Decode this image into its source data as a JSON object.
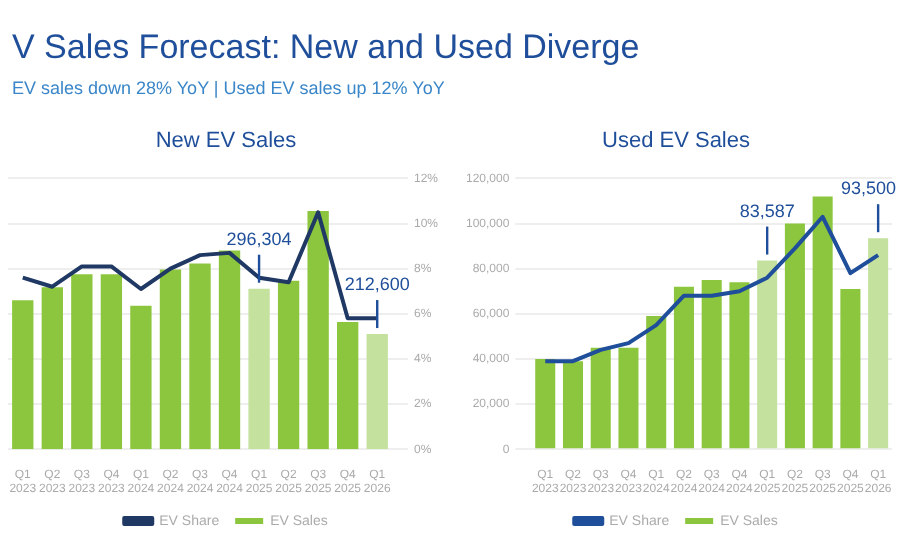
{
  "chart_data": [
    {
      "type": "other",
      "title": "V Sales Forecast: New and Used Diverge",
      "subtitle": "EV sales down 28% YoY | Used EV sales up 12% YoY"
    },
    {
      "type": "bar",
      "title": "New EV Sales",
      "categories": [
        "Q1 2023",
        "Q2 2023",
        "Q3 2023",
        "Q4 2023",
        "Q1 2024",
        "Q2 2024",
        "Q3 2024",
        "Q4 2024",
        "Q1 2025",
        "Q2 2025",
        "Q3 2025",
        "Q4 2025",
        "Q1 2026"
      ],
      "series": [
        {
          "name": "EV Sales",
          "type": "bar",
          "colors": [
            "#8cc63e",
            "#8cc63e",
            "#8cc63e",
            "#8cc63e",
            "#8cc63e",
            "#8cc63e",
            "#8cc63e",
            "#8cc63e",
            "#c4e29e",
            "#8cc63e",
            "#8cc63e",
            "#8cc63e",
            "#c4e29e"
          ],
          "values": [
            275000,
            299000,
            323000,
            323000,
            265000,
            332000,
            343000,
            367000,
            296304,
            311000,
            440000,
            235000,
            212600
          ],
          "value_labels": [
            null,
            null,
            null,
            null,
            null,
            null,
            null,
            null,
            "296,304",
            null,
            null,
            null,
            "212,600"
          ]
        },
        {
          "name": "EV Share",
          "type": "line",
          "axis": "y2",
          "color": "#1f3864",
          "values": [
            7.6,
            7.2,
            8.1,
            8.1,
            7.1,
            8.0,
            8.6,
            8.7,
            7.6,
            7.4,
            10.5,
            5.8,
            5.8
          ]
        }
      ],
      "y2lim": [
        0,
        12
      ],
      "y2ticks": [
        {
          "value": 0,
          "label": "0%"
        },
        {
          "value": 2,
          "label": "2%"
        },
        {
          "value": 4,
          "label": "4%"
        },
        {
          "value": 6,
          "label": "6%"
        },
        {
          "value": 8,
          "label": "8%"
        },
        {
          "value": 10,
          "label": "10%"
        },
        {
          "value": 12,
          "label": "12%"
        }
      ],
      "grid": true,
      "legend": "bottom",
      "marker": "none"
    },
    {
      "type": "bar",
      "title": "Used EV Sales",
      "categories": [
        "Q1 2023",
        "Q2 2023",
        "Q3 2023",
        "Q4 2023",
        "Q1 2024",
        "Q2 2024",
        "Q3 2024",
        "Q4 2024",
        "Q1 2025",
        "Q2 2025",
        "Q3 2025",
        "Q4 2025",
        "Q1 2026"
      ],
      "series": [
        {
          "name": "EV Sales",
          "type": "bar",
          "colors": [
            "#8cc63e",
            "#8cc63e",
            "#8cc63e",
            "#8cc63e",
            "#8cc63e",
            "#8cc63e",
            "#8cc63e",
            "#8cc63e",
            "#c4e29e",
            "#8cc63e",
            "#8cc63e",
            "#8cc63e",
            "#c4e29e"
          ],
          "values": [
            40000,
            39000,
            45000,
            45000,
            59000,
            72000,
            75000,
            74000,
            83587,
            100000,
            112000,
            71000,
            93500
          ],
          "value_labels": [
            null,
            null,
            null,
            null,
            null,
            null,
            null,
            null,
            "83,587",
            null,
            null,
            null,
            "93,500"
          ]
        },
        {
          "name": "EV Share",
          "type": "line",
          "color": "#1f4e9a",
          "values": [
            39000,
            39000,
            44000,
            47000,
            55000,
            68000,
            68000,
            70000,
            76000,
            89000,
            103000,
            78000,
            86000
          ]
        }
      ],
      "ylim": [
        0,
        120000
      ],
      "yticks": [
        0,
        {
          "value": 20000,
          "label": "20,000"
        },
        {
          "value": 40000,
          "label": "40,000"
        },
        {
          "value": 60000,
          "label": "60,000"
        },
        {
          "value": 80000,
          "label": "80,000"
        },
        {
          "value": 100000,
          "label": "100,000"
        },
        {
          "value": 120000,
          "label": "120,000"
        }
      ],
      "grid": true,
      "legend": "bottom",
      "marker": "none"
    }
  ]
}
